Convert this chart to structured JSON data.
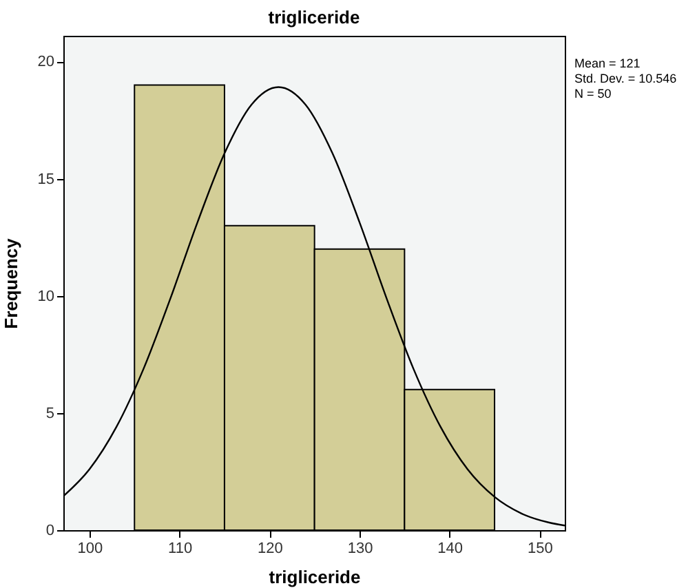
{
  "chart_data": {
    "type": "histogram",
    "title": "trigliceride",
    "xlabel": "trigliceride",
    "ylabel": "Frequency",
    "bins": [
      105,
      115,
      125,
      135,
      145
    ],
    "values": [
      19,
      13,
      12,
      6
    ],
    "color": "#d3ce97",
    "series": [
      {
        "type": "line",
        "color": "#000000",
        "x": [
          97.1,
          100,
          103,
          106,
          109,
          112,
          115,
          118,
          121,
          124,
          127,
          130,
          133,
          136,
          139,
          142,
          145,
          148,
          151,
          152.8
        ],
        "values": [
          1.45,
          2.6,
          4.41,
          6.88,
          9.9,
          13.14,
          16.08,
          18.16,
          18.91,
          18.16,
          16.08,
          13.14,
          9.9,
          6.88,
          4.41,
          2.6,
          1.42,
          0.71,
          0.33,
          0.2
        ]
      }
    ],
    "xlim": [
      97.1,
      152.8
    ],
    "xticks": [
      100,
      110,
      120,
      130,
      140,
      150
    ],
    "ylim": [
      0,
      21.1
    ],
    "yticks": [
      0,
      5,
      10,
      15,
      20
    ],
    "grid": false,
    "annotations": [
      "Mean = 121",
      "Std. Dev. = 10.546",
      "N = 50"
    ]
  }
}
